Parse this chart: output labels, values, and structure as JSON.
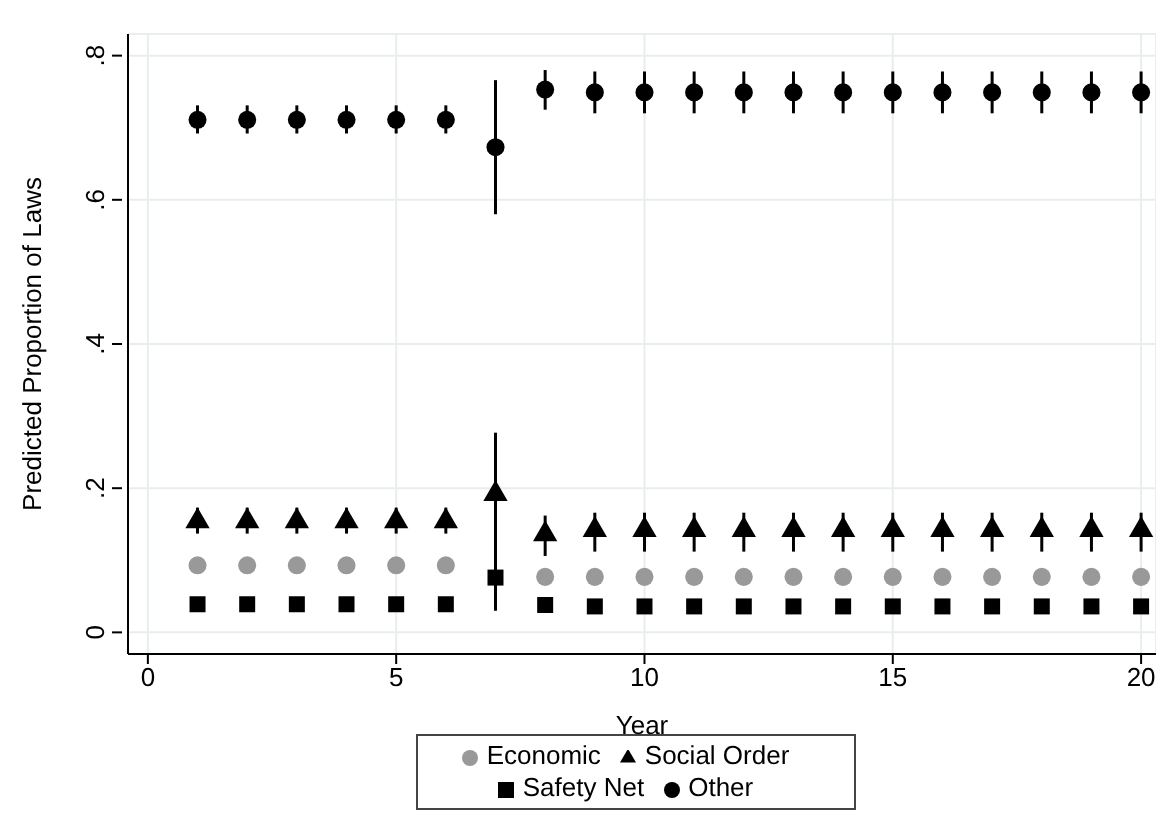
{
  "chart_data": {
    "type": "scatter",
    "xlabel": "Year",
    "ylabel": "Predicted Proportion of Laws",
    "x": [
      1,
      2,
      3,
      4,
      5,
      6,
      7,
      8,
      9,
      10,
      11,
      12,
      13,
      14,
      15,
      16,
      17,
      18,
      19,
      20
    ],
    "xlim": [
      -0.4,
      20.3
    ],
    "xticks": [
      0,
      5,
      10,
      15,
      20
    ],
    "ylim": [
      -0.03,
      0.83
    ],
    "yticks": [
      0,
      {
        "value": 0.2,
        "label": ".2"
      },
      {
        "value": 0.4,
        "label": ".4"
      },
      {
        "value": 0.6,
        "label": ".6"
      },
      {
        "value": 0.8,
        "label": ".8"
      }
    ],
    "grid": true,
    "legend": "bottom",
    "series": [
      {
        "name": "Economic",
        "color": "#999999",
        "marker": "circle",
        "values": [
          0.093,
          0.093,
          0.093,
          0.093,
          0.093,
          0.093,
          null,
          0.077,
          0.077,
          0.077,
          0.077,
          0.077,
          0.077,
          0.077,
          0.077,
          0.077,
          0.077,
          0.077,
          0.077,
          0.077
        ],
        "errors": [
          [
            0.085,
            0.101
          ],
          [
            0.085,
            0.101
          ],
          [
            0.085,
            0.101
          ],
          [
            0.085,
            0.101
          ],
          [
            0.085,
            0.101
          ],
          [
            0.085,
            0.101
          ],
          null,
          [
            0.068,
            0.086
          ],
          [
            0.068,
            0.086
          ],
          [
            0.068,
            0.086
          ],
          [
            0.068,
            0.086
          ],
          [
            0.068,
            0.086
          ],
          [
            0.068,
            0.086
          ],
          [
            0.068,
            0.086
          ],
          [
            0.068,
            0.086
          ],
          [
            0.068,
            0.086
          ],
          [
            0.068,
            0.086
          ],
          [
            0.068,
            0.086
          ],
          [
            0.068,
            0.086
          ],
          [
            0.068,
            0.086
          ]
        ]
      },
      {
        "name": "Social Order",
        "color": "#000000",
        "marker": "triangle",
        "values": [
          0.154,
          0.154,
          0.154,
          0.154,
          0.154,
          0.154,
          0.192,
          0.136,
          0.142,
          0.142,
          0.142,
          0.142,
          0.142,
          0.142,
          0.142,
          0.142,
          0.142,
          0.142,
          0.142,
          0.142
        ],
        "errors": [
          [
            0.137,
            0.173
          ],
          [
            0.137,
            0.173
          ],
          [
            0.137,
            0.173
          ],
          [
            0.137,
            0.173
          ],
          [
            0.137,
            0.173
          ],
          [
            0.137,
            0.173
          ],
          [
            0.03,
            0.277
          ],
          [
            0.106,
            0.162
          ],
          [
            0.112,
            0.166
          ],
          [
            0.112,
            0.166
          ],
          [
            0.112,
            0.166
          ],
          [
            0.112,
            0.166
          ],
          [
            0.112,
            0.166
          ],
          [
            0.112,
            0.166
          ],
          [
            0.112,
            0.166
          ],
          [
            0.112,
            0.166
          ],
          [
            0.112,
            0.166
          ],
          [
            0.112,
            0.166
          ],
          [
            0.112,
            0.166
          ],
          [
            0.112,
            0.166
          ]
        ]
      },
      {
        "name": "Safety Net",
        "color": "#000000",
        "marker": "square",
        "values": [
          0.039,
          0.039,
          0.039,
          0.039,
          0.039,
          0.039,
          0.076,
          0.038,
          0.036,
          0.036,
          0.036,
          0.036,
          0.036,
          0.036,
          0.036,
          0.036,
          0.036,
          0.036,
          0.036,
          0.036
        ]
      },
      {
        "name": "Other",
        "color": "#000000",
        "marker": "circle",
        "values": [
          0.711,
          0.711,
          0.711,
          0.711,
          0.711,
          0.711,
          0.673,
          0.753,
          0.749,
          0.749,
          0.749,
          0.749,
          0.749,
          0.749,
          0.749,
          0.749,
          0.749,
          0.749,
          0.749,
          0.749
        ],
        "errors": [
          [
            0.692,
            0.731
          ],
          [
            0.692,
            0.731
          ],
          [
            0.692,
            0.731
          ],
          [
            0.692,
            0.731
          ],
          [
            0.692,
            0.731
          ],
          [
            0.692,
            0.731
          ],
          [
            0.58,
            0.766
          ],
          [
            0.725,
            0.78
          ],
          [
            0.72,
            0.778
          ],
          [
            0.72,
            0.778
          ],
          [
            0.72,
            0.778
          ],
          [
            0.72,
            0.778
          ],
          [
            0.72,
            0.778
          ],
          [
            0.72,
            0.778
          ],
          [
            0.72,
            0.778
          ],
          [
            0.72,
            0.778
          ],
          [
            0.72,
            0.778
          ],
          [
            0.72,
            0.778
          ],
          [
            0.72,
            0.778
          ],
          [
            0.72,
            0.778
          ]
        ]
      }
    ]
  }
}
